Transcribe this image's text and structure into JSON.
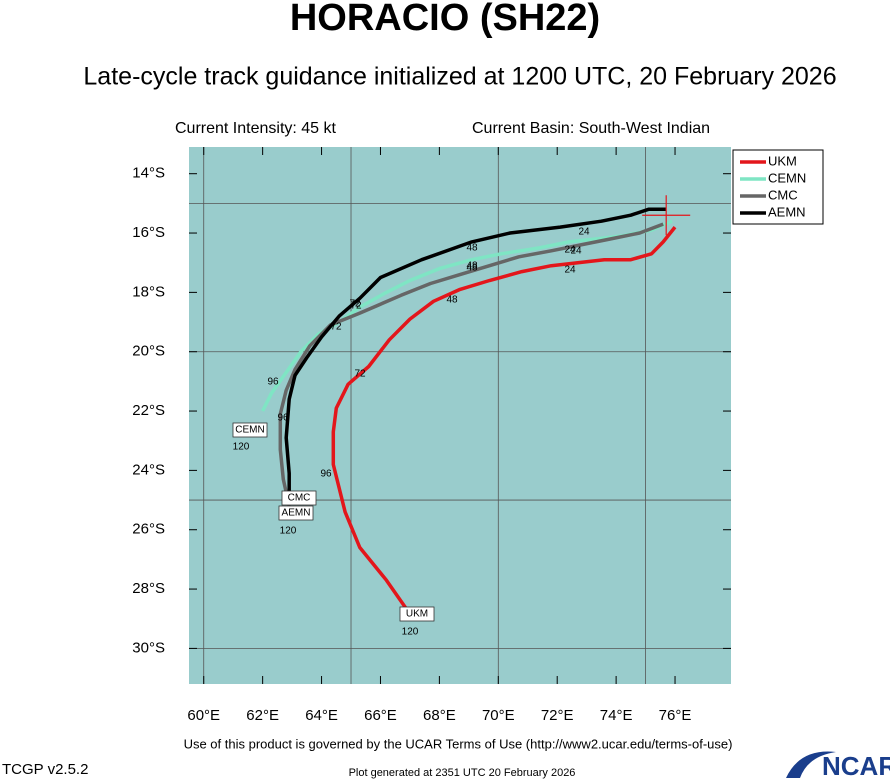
{
  "chart_data": {
    "type": "line",
    "title": "HORACIO (SH22)",
    "subtitle": "Late-cycle track guidance initialized at 1200 UTC, 20 February 2026",
    "left_header": "Current Intensity: 45 kt",
    "right_header": "Current Basin: South-West Indian",
    "footer": "Use of this product is governed by the UCAR Terms of Use (http://www2.ucar.edu/terms-of-use)",
    "version": "TCGP v2.5.2",
    "generated": "Plot generated at 2351 UTC  20 February 2026",
    "logo": "NCAR",
    "xlim": [
      59.5,
      77.9
    ],
    "ylim": [
      -31.2,
      -13.1
    ],
    "xticks": [
      {
        "value": 60,
        "label": "60°E"
      },
      {
        "value": 62,
        "label": "62°E"
      },
      {
        "value": 64,
        "label": "64°E"
      },
      {
        "value": 66,
        "label": "66°E"
      },
      {
        "value": 68,
        "label": "68°E"
      },
      {
        "value": 70,
        "label": "70°E"
      },
      {
        "value": 72,
        "label": "72°E"
      },
      {
        "value": 74,
        "label": "74°E"
      },
      {
        "value": 76,
        "label": "76°E"
      }
    ],
    "yticks": [
      {
        "value": -14,
        "label": "14°S"
      },
      {
        "value": -16,
        "label": "16°S"
      },
      {
        "value": -18,
        "label": "18°S"
      },
      {
        "value": -20,
        "label": "20°S"
      },
      {
        "value": -22,
        "label": "22°S"
      },
      {
        "value": -24,
        "label": "24°S"
      },
      {
        "value": -26,
        "label": "26°S"
      },
      {
        "value": -28,
        "label": "28°S"
      },
      {
        "value": -30,
        "label": "30°S"
      }
    ],
    "grid": true,
    "xgrid": [
      60,
      65,
      70,
      75
    ],
    "ygrid": [
      -15,
      -20,
      -25,
      -30
    ],
    "background": "#99cccc",
    "legend": "upper right outside",
    "current_position": {
      "x": 75.7,
      "y": -15.4
    },
    "series": [
      {
        "name": "UKM",
        "color": "#e3161b",
        "x": [
          76.0,
          75.6,
          75.2,
          74.5,
          73.6,
          72.7,
          71.8,
          70.8,
          69.7,
          68.7,
          67.8,
          67.0,
          66.3,
          65.6,
          64.9,
          64.5,
          64.4,
          64.4,
          64.8,
          65.3,
          66.2,
          66.9
        ],
        "y": [
          -15.8,
          -16.3,
          -16.7,
          -16.9,
          -16.9,
          -17.0,
          -17.1,
          -17.3,
          -17.6,
          -17.9,
          -18.3,
          -18.9,
          -19.6,
          -20.5,
          -21.1,
          -21.9,
          -22.7,
          -23.8,
          -25.4,
          -26.6,
          -27.7,
          -28.7
        ]
      },
      {
        "name": "CEMN",
        "color": "#7fe5c4",
        "x": [
          75.9,
          75.2,
          74.2,
          73.3,
          72.4,
          71.4,
          70.1,
          69.1,
          68.0,
          67.0,
          66.2,
          65.3,
          64.6,
          63.9,
          63.3,
          62.8,
          62.3,
          62.0
        ],
        "y": [
          -15.6,
          -15.9,
          -16.1,
          -16.2,
          -16.3,
          -16.5,
          -16.7,
          -16.9,
          -17.2,
          -17.6,
          -18.0,
          -18.5,
          -19.0,
          -19.4,
          -20.0,
          -20.7,
          -21.4,
          -22.0
        ]
      },
      {
        "name": "CMC",
        "color": "#666666",
        "x": [
          75.6,
          74.8,
          73.8,
          72.8,
          71.8,
          70.7,
          69.7,
          68.7,
          67.7,
          66.7,
          65.3,
          64.3,
          63.6,
          63.1,
          62.8,
          62.6,
          62.6,
          62.7,
          62.9
        ],
        "y": [
          -15.7,
          -16.0,
          -16.2,
          -16.4,
          -16.6,
          -16.8,
          -17.1,
          -17.4,
          -17.7,
          -18.1,
          -18.7,
          -19.1,
          -19.8,
          -20.6,
          -21.3,
          -22.1,
          -23.3,
          -24.3,
          -25.2
        ]
      },
      {
        "name": "AEMN",
        "color": "#000000",
        "x": [
          75.7,
          75.1,
          74.5,
          73.5,
          72.1,
          70.4,
          69.1,
          67.4,
          66.0,
          65.3,
          64.6,
          64.0,
          63.5,
          63.1,
          62.9,
          62.8,
          62.9,
          62.9
        ],
        "y": [
          -15.2,
          -15.2,
          -15.4,
          -15.6,
          -15.8,
          -16.0,
          -16.3,
          -16.9,
          -17.5,
          -18.2,
          -18.8,
          -19.5,
          -20.2,
          -20.8,
          -21.6,
          -22.9,
          -24.1,
          -24.9
        ]
      }
    ],
    "annotations": [
      "24",
      "48",
      "72",
      "96",
      "120",
      "24",
      "48",
      "72",
      "96",
      "120",
      "24",
      "48",
      "72",
      "96",
      "120",
      "24",
      "48",
      "72"
    ]
  }
}
